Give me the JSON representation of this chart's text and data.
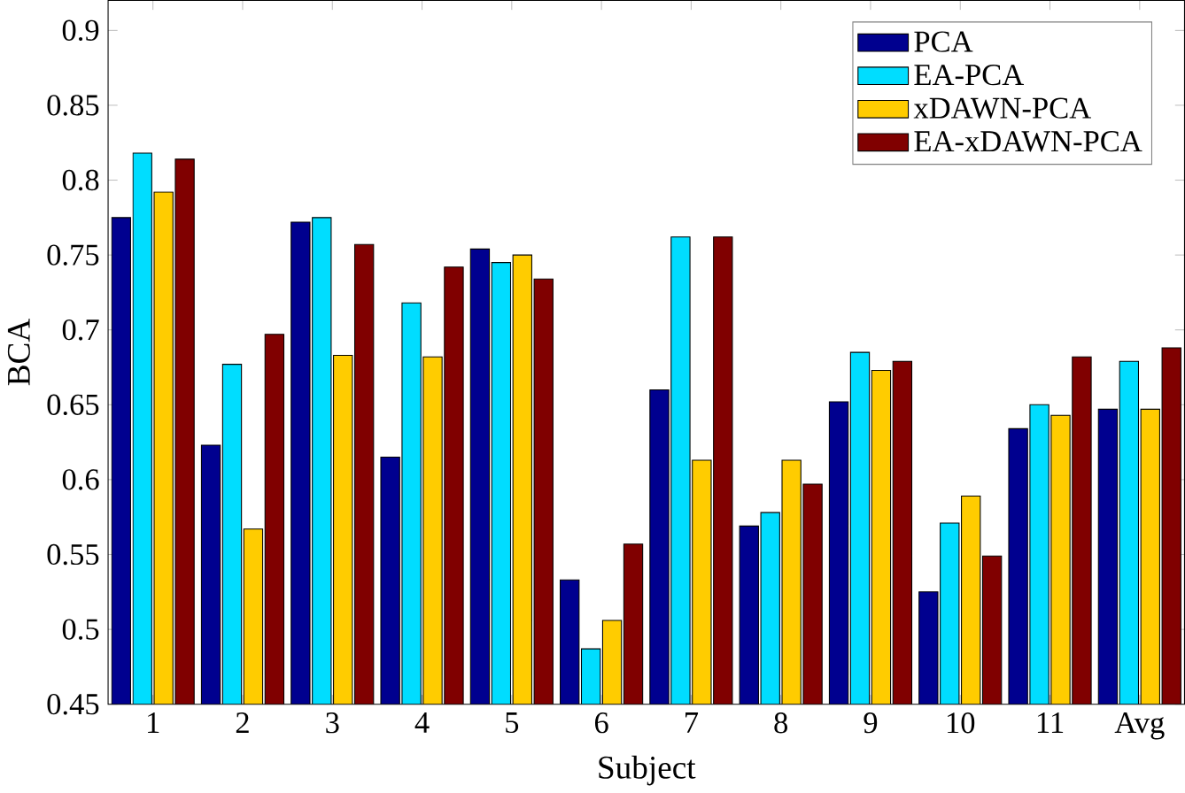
{
  "chart_data": {
    "type": "bar",
    "xlabel": "Subject",
    "ylabel": "BCA",
    "categories": [
      "1",
      "2",
      "3",
      "4",
      "5",
      "6",
      "7",
      "8",
      "9",
      "10",
      "11",
      "Avg"
    ],
    "series": [
      {
        "name": "PCA",
        "color": "#00008f",
        "values": [
          0.775,
          0.623,
          0.772,
          0.615,
          0.754,
          0.533,
          0.66,
          0.569,
          0.652,
          0.525,
          0.634,
          0.647
        ]
      },
      {
        "name": "EA-PCA",
        "color": "#00ddff",
        "values": [
          0.818,
          0.677,
          0.775,
          0.718,
          0.745,
          0.487,
          0.762,
          0.578,
          0.685,
          0.571,
          0.65,
          0.679
        ]
      },
      {
        "name": "xDAWN-PCA",
        "color": "#ffcc00",
        "values": [
          0.792,
          0.567,
          0.683,
          0.682,
          0.75,
          0.506,
          0.613,
          0.613,
          0.673,
          0.589,
          0.643,
          0.647
        ]
      },
      {
        "name": "EA-xDAWN-PCA",
        "color": "#800000",
        "values": [
          0.814,
          0.697,
          0.757,
          0.742,
          0.734,
          0.557,
          0.762,
          0.597,
          0.679,
          0.549,
          0.682,
          0.688
        ]
      }
    ],
    "ylim": [
      0.45,
      0.92
    ],
    "yticks": [
      0.45,
      0.5,
      0.55,
      0.6,
      0.65,
      0.7,
      0.75,
      0.8,
      0.85,
      0.9
    ],
    "grid": false,
    "legend": "top right"
  }
}
